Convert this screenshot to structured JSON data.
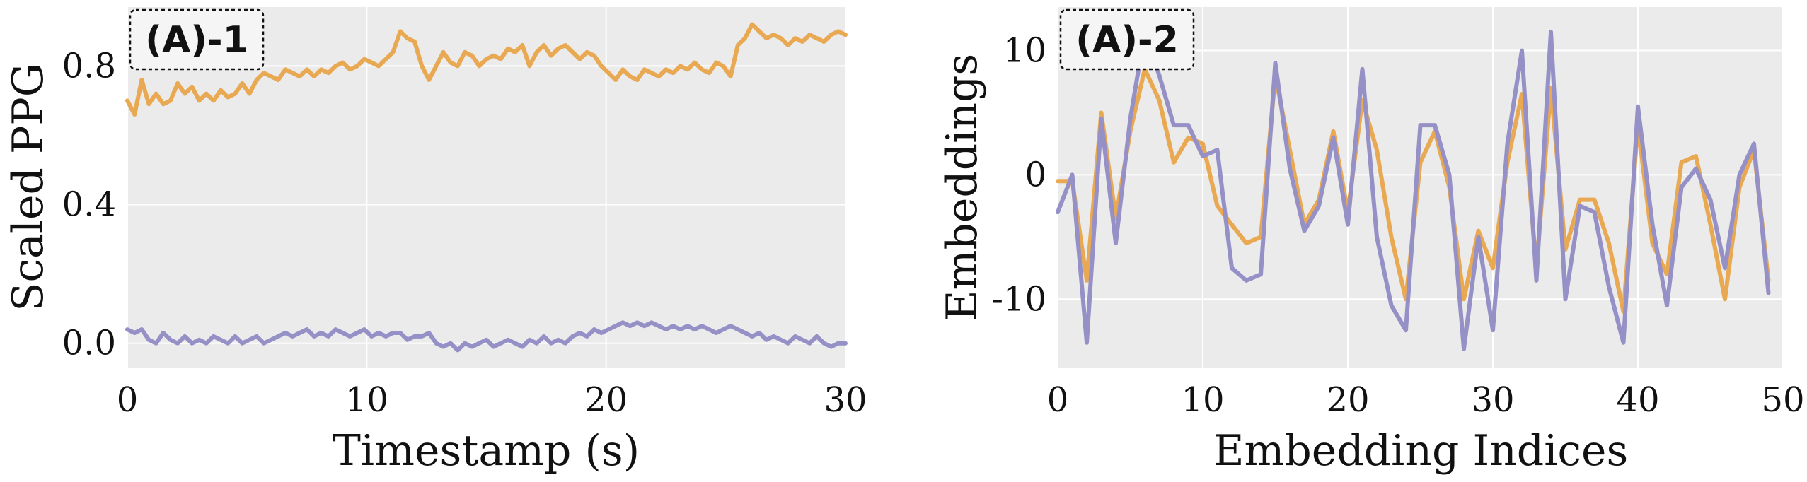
{
  "colors": {
    "orange": "#E9A852",
    "purple": "#9590C6",
    "panel_bg": "#EBEBEB",
    "grid": "#FFFFFF"
  },
  "chart_data": [
    {
      "type": "line",
      "panel_label": "(A)-1",
      "xlabel": "Timestamp (s)",
      "ylabel": "Scaled PPG",
      "xlim": [
        0,
        30
      ],
      "ylim": [
        -0.07,
        0.97
      ],
      "xticks": [
        0,
        10,
        20,
        30
      ],
      "yticks": [
        0.0,
        0.4,
        0.8
      ],
      "ytick_labels": [
        "0.0",
        "0.4",
        "0.8"
      ],
      "grid": true,
      "series": [
        {
          "color": "orange",
          "x": [
            0,
            0.3,
            0.6,
            0.9,
            1.2,
            1.5,
            1.8,
            2.1,
            2.4,
            2.7,
            3.0,
            3.3,
            3.6,
            3.9,
            4.2,
            4.5,
            4.8,
            5.1,
            5.4,
            5.7,
            6.0,
            6.3,
            6.6,
            6.9,
            7.2,
            7.5,
            7.8,
            8.1,
            8.4,
            8.7,
            9.0,
            9.3,
            9.6,
            9.9,
            10.2,
            10.5,
            10.8,
            11.1,
            11.4,
            11.7,
            12.0,
            12.3,
            12.6,
            12.9,
            13.2,
            13.5,
            13.8,
            14.1,
            14.4,
            14.7,
            15.0,
            15.3,
            15.6,
            15.9,
            16.2,
            16.5,
            16.8,
            17.1,
            17.4,
            17.7,
            18.0,
            18.3,
            18.6,
            18.9,
            19.2,
            19.5,
            19.8,
            20.1,
            20.4,
            20.7,
            21.0,
            21.3,
            21.6,
            21.9,
            22.2,
            22.5,
            22.8,
            23.1,
            23.4,
            23.7,
            24.0,
            24.3,
            24.6,
            24.9,
            25.2,
            25.5,
            25.8,
            26.1,
            26.4,
            26.7,
            27.0,
            27.3,
            27.6,
            27.9,
            28.2,
            28.5,
            28.8,
            29.1,
            29.4,
            29.7,
            30.0
          ],
          "y": [
            0.7,
            0.66,
            0.76,
            0.69,
            0.72,
            0.69,
            0.7,
            0.75,
            0.72,
            0.74,
            0.7,
            0.72,
            0.7,
            0.73,
            0.71,
            0.72,
            0.75,
            0.72,
            0.76,
            0.78,
            0.77,
            0.76,
            0.79,
            0.78,
            0.77,
            0.79,
            0.77,
            0.79,
            0.78,
            0.8,
            0.81,
            0.79,
            0.8,
            0.82,
            0.81,
            0.8,
            0.82,
            0.84,
            0.9,
            0.88,
            0.87,
            0.8,
            0.76,
            0.8,
            0.84,
            0.81,
            0.8,
            0.84,
            0.83,
            0.8,
            0.82,
            0.83,
            0.82,
            0.85,
            0.84,
            0.86,
            0.8,
            0.84,
            0.86,
            0.83,
            0.85,
            0.86,
            0.84,
            0.82,
            0.84,
            0.83,
            0.8,
            0.78,
            0.76,
            0.79,
            0.77,
            0.76,
            0.79,
            0.78,
            0.77,
            0.79,
            0.78,
            0.8,
            0.79,
            0.81,
            0.79,
            0.78,
            0.81,
            0.8,
            0.77,
            0.86,
            0.88,
            0.92,
            0.9,
            0.88,
            0.89,
            0.88,
            0.86,
            0.88,
            0.87,
            0.89,
            0.88,
            0.87,
            0.89,
            0.9,
            0.89
          ]
        },
        {
          "color": "purple",
          "x": [
            0,
            0.3,
            0.6,
            0.9,
            1.2,
            1.5,
            1.8,
            2.1,
            2.4,
            2.7,
            3.0,
            3.3,
            3.6,
            3.9,
            4.2,
            4.5,
            4.8,
            5.1,
            5.4,
            5.7,
            6.0,
            6.3,
            6.6,
            6.9,
            7.2,
            7.5,
            7.8,
            8.1,
            8.4,
            8.7,
            9.0,
            9.3,
            9.6,
            9.9,
            10.2,
            10.5,
            10.8,
            11.1,
            11.4,
            11.7,
            12.0,
            12.3,
            12.6,
            12.9,
            13.2,
            13.5,
            13.8,
            14.1,
            14.4,
            14.7,
            15.0,
            15.3,
            15.6,
            15.9,
            16.2,
            16.5,
            16.8,
            17.1,
            17.4,
            17.7,
            18.0,
            18.3,
            18.6,
            18.9,
            19.2,
            19.5,
            19.8,
            20.1,
            20.4,
            20.7,
            21.0,
            21.3,
            21.6,
            21.9,
            22.2,
            22.5,
            22.8,
            23.1,
            23.4,
            23.7,
            24.0,
            24.3,
            24.6,
            24.9,
            25.2,
            25.5,
            25.8,
            26.1,
            26.4,
            26.7,
            27.0,
            27.3,
            27.6,
            27.9,
            28.2,
            28.5,
            28.8,
            29.1,
            29.4,
            29.7,
            30.0
          ],
          "y": [
            0.04,
            0.03,
            0.04,
            0.01,
            0.0,
            0.03,
            0.01,
            0.0,
            0.02,
            0.0,
            0.01,
            0.0,
            0.02,
            0.01,
            0.0,
            0.02,
            0.0,
            0.01,
            0.02,
            0.0,
            0.01,
            0.02,
            0.03,
            0.02,
            0.03,
            0.04,
            0.02,
            0.03,
            0.02,
            0.04,
            0.03,
            0.02,
            0.03,
            0.04,
            0.02,
            0.03,
            0.02,
            0.03,
            0.03,
            0.01,
            0.02,
            0.02,
            0.03,
            0.0,
            -0.01,
            0.0,
            -0.02,
            0.0,
            -0.01,
            0.0,
            0.01,
            -0.01,
            0.0,
            0.01,
            0.0,
            -0.01,
            0.01,
            0.0,
            0.02,
            0.0,
            0.01,
            0.0,
            0.02,
            0.03,
            0.02,
            0.04,
            0.03,
            0.04,
            0.05,
            0.06,
            0.05,
            0.06,
            0.05,
            0.06,
            0.05,
            0.04,
            0.05,
            0.04,
            0.05,
            0.04,
            0.05,
            0.04,
            0.03,
            0.04,
            0.05,
            0.04,
            0.03,
            0.02,
            0.03,
            0.01,
            0.02,
            0.01,
            0.0,
            0.02,
            0.01,
            0.0,
            0.02,
            0.0,
            -0.01,
            0.0,
            0.0
          ]
        }
      ]
    },
    {
      "type": "line",
      "panel_label": "(A)-2",
      "xlabel": "Embedding Indices",
      "ylabel": "Embeddings",
      "xlim": [
        0,
        50
      ],
      "ylim": [
        -15.5,
        13.5
      ],
      "xticks": [
        0,
        10,
        20,
        30,
        40,
        50
      ],
      "yticks": [
        -10,
        0,
        10
      ],
      "ytick_labels": [
        "-10",
        "0",
        "10"
      ],
      "grid": true,
      "series": [
        {
          "color": "orange",
          "x": [
            0,
            1,
            2,
            3,
            4,
            5,
            6,
            7,
            8,
            9,
            10,
            11,
            12,
            13,
            14,
            15,
            16,
            17,
            18,
            19,
            20,
            21,
            22,
            23,
            24,
            25,
            26,
            27,
            28,
            29,
            30,
            31,
            32,
            33,
            34,
            35,
            36,
            37,
            38,
            39,
            40,
            41,
            42,
            43,
            44,
            45,
            46,
            47,
            48,
            49
          ],
          "y": [
            -0.5,
            -0.5,
            -8.5,
            5.0,
            -3.5,
            3.5,
            8.5,
            6.0,
            1.0,
            3.0,
            2.5,
            -2.5,
            -4.0,
            -5.5,
            -5.0,
            8.0,
            2.0,
            -4.0,
            -2.0,
            3.5,
            -3.0,
            6.0,
            2.0,
            -5.0,
            -10.0,
            1.0,
            3.5,
            -1.0,
            -10.0,
            -4.5,
            -7.5,
            1.0,
            6.5,
            -7.5,
            7.0,
            -6.0,
            -2.0,
            -2.0,
            -5.5,
            -11.0,
            4.0,
            -5.5,
            -8.0,
            1.0,
            1.5,
            -4.0,
            -10.0,
            -1.0,
            2.0,
            -8.5
          ]
        },
        {
          "color": "purple",
          "x": [
            0,
            1,
            2,
            3,
            4,
            5,
            6,
            7,
            8,
            9,
            10,
            11,
            12,
            13,
            14,
            15,
            16,
            17,
            18,
            19,
            20,
            21,
            22,
            23,
            24,
            25,
            26,
            27,
            28,
            29,
            30,
            31,
            32,
            33,
            34,
            35,
            36,
            37,
            38,
            39,
            40,
            41,
            42,
            43,
            44,
            45,
            46,
            47,
            48,
            49
          ],
          "y": [
            -3.0,
            0.0,
            -13.5,
            4.5,
            -5.5,
            4.5,
            11.5,
            8.0,
            4.0,
            4.0,
            1.5,
            2.0,
            -7.5,
            -8.5,
            -8.0,
            9.0,
            0.5,
            -4.5,
            -2.5,
            3.0,
            -4.0,
            8.5,
            -5.0,
            -10.5,
            -12.5,
            4.0,
            4.0,
            0.0,
            -14.0,
            -5.0,
            -12.5,
            2.5,
            10.0,
            -8.5,
            11.5,
            -10.0,
            -2.5,
            -3.0,
            -9.0,
            -13.5,
            5.5,
            -4.0,
            -10.5,
            -1.0,
            0.5,
            -2.0,
            -7.5,
            0.0,
            2.5,
            -9.5
          ]
        }
      ]
    }
  ]
}
